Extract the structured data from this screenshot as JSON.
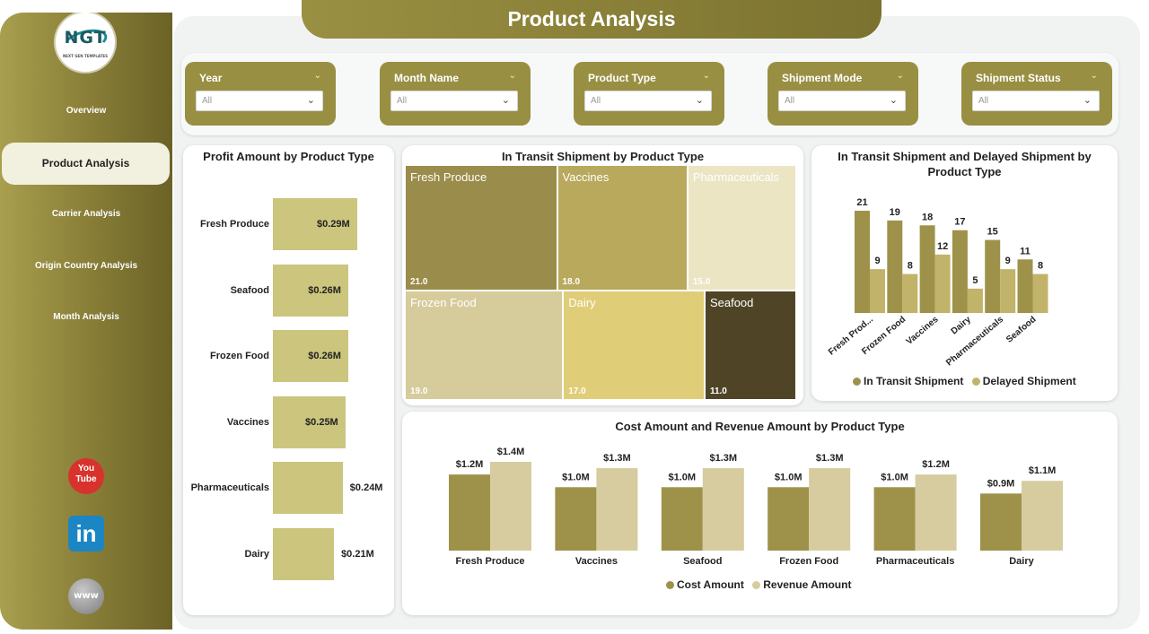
{
  "app": {
    "title": "Product Analysis",
    "logo": {
      "mark": "NGT",
      "subtitle": "NEXT GEN TEMPLATES"
    }
  },
  "sidebar": {
    "items": [
      {
        "label": "Overview"
      },
      {
        "label": "Product Analysis"
      },
      {
        "label": "Carrier Analysis"
      },
      {
        "label": "Origin Country Analysis"
      },
      {
        "label": "Month Analysis"
      }
    ],
    "active_index": 1,
    "social": [
      {
        "icon": "youtube-icon",
        "text_top": "You",
        "text_bottom": "Tube"
      },
      {
        "icon": "linkedin-icon",
        "text": "in"
      },
      {
        "icon": "website-globe-icon",
        "text": "www"
      }
    ]
  },
  "filters": [
    {
      "label": "Year",
      "value": "All"
    },
    {
      "label": "Month Name",
      "value": "All"
    },
    {
      "label": "Product Type",
      "value": "All"
    },
    {
      "label": "Shipment Mode",
      "value": "All"
    },
    {
      "label": "Shipment Status",
      "value": "All"
    }
  ],
  "colors": {
    "olive_dark": "#998f43",
    "olive_bar": "#9e924a",
    "khaki_bar": "#c1b36a",
    "profit_bar": "#cbc57e",
    "beige": "#d6cc9f",
    "treemap": [
      "#9a8c4a",
      "#b8a95d",
      "#ebe5c4",
      "#d6cb9b",
      "#e0cd78",
      "#4f4526"
    ]
  },
  "chart_data": [
    {
      "type": "bar",
      "orientation": "horizontal",
      "title": "Profit Amount by Product Type",
      "categories": [
        "Fresh Produce",
        "Seafood",
        "Frozen Food",
        "Vaccines",
        "Pharmaceuticals",
        "Dairy"
      ],
      "values": [
        0.29,
        0.26,
        0.26,
        0.25,
        0.24,
        0.21
      ],
      "data_labels": [
        "$0.29M",
        "$0.26M",
        "$0.26M",
        "$0.25M",
        "$0.24M",
        "$0.21M"
      ],
      "unit": "$M"
    },
    {
      "type": "treemap",
      "title": "In Transit Shipment by Product Type",
      "categories": [
        "Fresh Produce",
        "Vaccines",
        "Pharmaceuticals",
        "Frozen Food",
        "Dairy",
        "Seafood"
      ],
      "values": [
        21,
        18,
        15,
        19,
        17,
        11
      ],
      "data_labels": [
        "21.0",
        "18.0",
        "15.0",
        "19.0",
        "17.0",
        "11.0"
      ]
    },
    {
      "type": "bar",
      "title": "In Transit Shipment and Delayed Shipment by Product Type",
      "categories": [
        "Fresh Prod...",
        "Frozen Food",
        "Vaccines",
        "Dairy",
        "Pharmaceuticals",
        "Seafood"
      ],
      "series": [
        {
          "name": "In Transit Shipment",
          "values": [
            21,
            19,
            18,
            17,
            15,
            11
          ]
        },
        {
          "name": "Delayed Shipment",
          "values": [
            9,
            8,
            12,
            5,
            9,
            8
          ]
        }
      ],
      "legend": "bottom"
    },
    {
      "type": "bar",
      "title": "Cost Amount and Revenue Amount by Product Type",
      "categories": [
        "Fresh Produce",
        "Vaccines",
        "Seafood",
        "Frozen Food",
        "Pharmaceuticals",
        "Dairy"
      ],
      "series": [
        {
          "name": "Cost Amount",
          "values": [
            1.2,
            1.0,
            1.0,
            1.0,
            1.0,
            0.9
          ],
          "data_labels": [
            "$1.2M",
            "$1.0M",
            "$1.0M",
            "$1.0M",
            "$1.0M",
            "$0.9M"
          ]
        },
        {
          "name": "Revenue Amount",
          "values": [
            1.4,
            1.3,
            1.3,
            1.3,
            1.2,
            1.1
          ],
          "data_labels": [
            "$1.4M",
            "$1.3M",
            "$1.3M",
            "$1.3M",
            "$1.2M",
            "$1.1M"
          ]
        }
      ],
      "legend": "bottom"
    }
  ]
}
